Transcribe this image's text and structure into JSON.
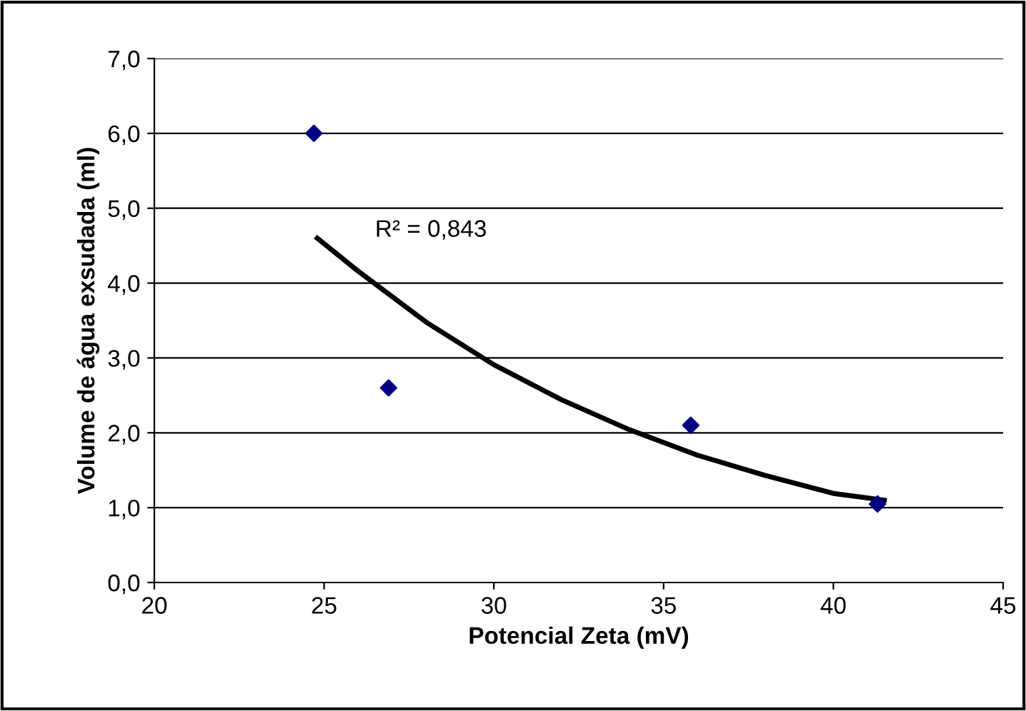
{
  "chart_data": {
    "type": "scatter",
    "xlabel": "Potencial Zeta (mV)",
    "ylabel": "Volume de água exsudada (ml)",
    "annotations": [
      "R² = 0,843"
    ],
    "series": [
      {
        "color": "#000080",
        "marker": "diamond",
        "x": [
          24.7,
          26.9,
          35.8,
          41.3
        ],
        "values": [
          6.0,
          2.6,
          2.1,
          1.05
        ]
      },
      {
        "type": "line",
        "color": "#000000",
        "marker": "none",
        "x": [
          24.8,
          26,
          28,
          30,
          32,
          34,
          36,
          38,
          40,
          41.5
        ],
        "values": [
          4.6,
          4.16,
          3.48,
          2.91,
          2.44,
          2.04,
          1.7,
          1.43,
          1.19,
          1.1
        ]
      }
    ],
    "xlim": [
      20,
      45
    ],
    "xticks": [
      20,
      25,
      30,
      35,
      40,
      45
    ],
    "ylim": [
      0,
      7
    ],
    "yticks": [
      {
        "value": 0,
        "label": "0,0"
      },
      {
        "value": 1,
        "label": "1,0"
      },
      {
        "value": 2,
        "label": "2,0"
      },
      {
        "value": 3,
        "label": "3,0"
      },
      {
        "value": 4,
        "label": "4,0"
      },
      {
        "value": 5,
        "label": "5,0"
      },
      {
        "value": 6,
        "label": "6,0"
      },
      {
        "value": 7,
        "label": "7,0"
      }
    ],
    "grid": "y",
    "legend": false
  }
}
